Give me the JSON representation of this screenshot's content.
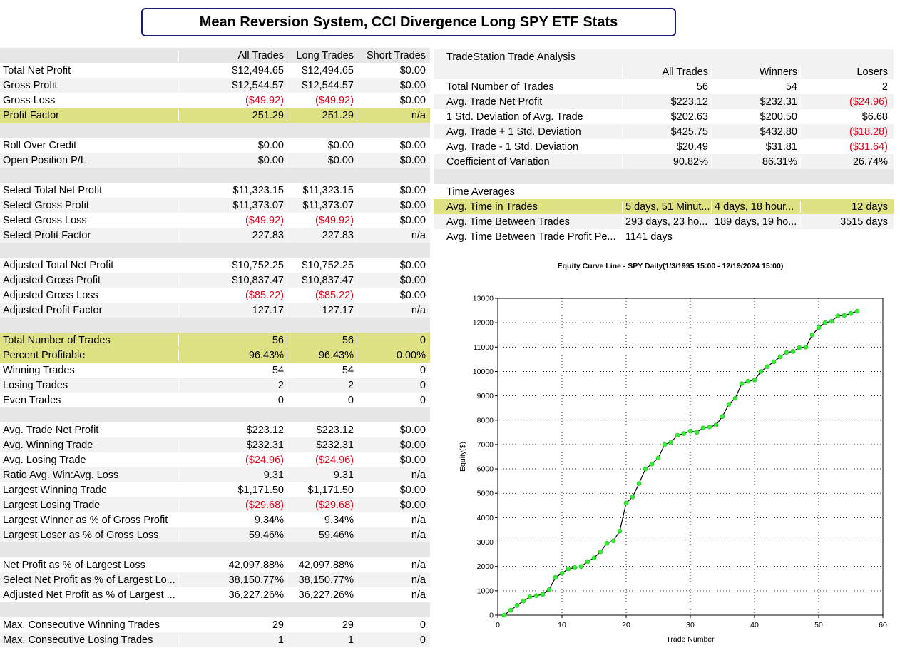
{
  "title": "Mean Reversion System, CCI Divergence Long SPY ETF Stats",
  "stats": {
    "headers": [
      "",
      "All Trades",
      "Long Trades",
      "Short Trades"
    ],
    "rows": [
      {
        "label": "Total Net Profit",
        "all": "$12,494.65",
        "long": "$12,494.65",
        "short": "$0.00"
      },
      {
        "label": "Gross Profit",
        "all": "$12,544.57",
        "long": "$12,544.57",
        "short": "$0.00"
      },
      {
        "label": "Gross Loss",
        "all": "($49.92)",
        "long": "($49.92)",
        "short": "$0.00",
        "neg": true
      },
      {
        "label": "Profit Factor",
        "all": "251.29",
        "long": "251.29",
        "short": "n/a",
        "highlight": true
      },
      {
        "blank": true
      },
      {
        "label": "Roll Over Credit",
        "all": "$0.00",
        "long": "$0.00",
        "short": "$0.00"
      },
      {
        "label": "Open Position P/L",
        "all": "$0.00",
        "long": "$0.00",
        "short": "$0.00"
      },
      {
        "blank": true
      },
      {
        "label": "Select Total Net Profit",
        "all": "$11,323.15",
        "long": "$11,323.15",
        "short": "$0.00"
      },
      {
        "label": "Select Gross Profit",
        "all": "$11,373.07",
        "long": "$11,373.07",
        "short": "$0.00"
      },
      {
        "label": "Select Gross Loss",
        "all": "($49.92)",
        "long": "($49.92)",
        "short": "$0.00",
        "neg": true
      },
      {
        "label": "Select Profit Factor",
        "all": "227.83",
        "long": "227.83",
        "short": "n/a"
      },
      {
        "blank": true
      },
      {
        "label": "Adjusted Total Net Profit",
        "all": "$10,752.25",
        "long": "$10,752.25",
        "short": "$0.00"
      },
      {
        "label": "Adjusted Gross Profit",
        "all": "$10,837.47",
        "long": "$10,837.47",
        "short": "$0.00"
      },
      {
        "label": "Adjusted Gross Loss",
        "all": "($85.22)",
        "long": "($85.22)",
        "short": "$0.00",
        "neg": true
      },
      {
        "label": "Adjusted Profit Factor",
        "all": "127.17",
        "long": "127.17",
        "short": "n/a"
      },
      {
        "blank": true
      },
      {
        "label": "Total Number of Trades",
        "all": "56",
        "long": "56",
        "short": "0",
        "highlight": true
      },
      {
        "label": "Percent Profitable",
        "all": "96.43%",
        "long": "96.43%",
        "short": "0.00%",
        "highlight": true
      },
      {
        "label": "Winning Trades",
        "all": "54",
        "long": "54",
        "short": "0"
      },
      {
        "label": "Losing Trades",
        "all": "2",
        "long": "2",
        "short": "0"
      },
      {
        "label": "Even Trades",
        "all": "0",
        "long": "0",
        "short": "0"
      },
      {
        "blank": true
      },
      {
        "label": "Avg. Trade Net Profit",
        "all": "$223.12",
        "long": "$223.12",
        "short": "$0.00"
      },
      {
        "label": "Avg. Winning Trade",
        "all": "$232.31",
        "long": "$232.31",
        "short": "$0.00"
      },
      {
        "label": "Avg. Losing Trade",
        "all": "($24.96)",
        "long": "($24.96)",
        "short": "$0.00",
        "neg": true
      },
      {
        "label": "Ratio Avg. Win:Avg. Loss",
        "all": "9.31",
        "long": "9.31",
        "short": "n/a"
      },
      {
        "label": "Largest Winning Trade",
        "all": "$1,171.50",
        "long": "$1,171.50",
        "short": "$0.00"
      },
      {
        "label": "Largest Losing Trade",
        "all": "($29.68)",
        "long": "($29.68)",
        "short": "$0.00",
        "neg": true
      },
      {
        "label": "Largest Winner as % of Gross Profit",
        "all": "9.34%",
        "long": "9.34%",
        "short": "n/a"
      },
      {
        "label": "Largest Loser as % of Gross Loss",
        "all": "59.46%",
        "long": "59.46%",
        "short": "n/a"
      },
      {
        "blank": true
      },
      {
        "label": "Net Profit as % of Largest Loss",
        "all": "42,097.88%",
        "long": "42,097.88%",
        "short": "n/a"
      },
      {
        "label": "Select Net Profit as % of Largest Lo...",
        "all": "38,150.77%",
        "long": "38,150.77%",
        "short": "n/a"
      },
      {
        "label": "Adjusted Net Profit as % of Largest ...",
        "all": "36,227.26%",
        "long": "36,227.26%",
        "short": "n/a"
      },
      {
        "blank": true
      },
      {
        "label": "Max. Consecutive Winning Trades",
        "all": "29",
        "long": "29",
        "short": "0"
      },
      {
        "label": "Max. Consecutive Losing Trades",
        "all": "1",
        "long": "1",
        "short": "0"
      }
    ]
  },
  "analysis": {
    "title": "TradeStation Trade Analysis",
    "headers": [
      "",
      "All Trades",
      "Winners",
      "Losers"
    ],
    "rows": [
      {
        "label": "Total Number of Trades",
        "all": "56",
        "win": "54",
        "lose": "2"
      },
      {
        "label": "Avg. Trade Net Profit",
        "all": "$223.12",
        "win": "$232.31",
        "lose": "($24.96)",
        "neg": true
      },
      {
        "label": "1 Std. Deviation of Avg. Trade",
        "all": "$202.63",
        "win": "$200.50",
        "lose": "$6.68"
      },
      {
        "label": "Avg. Trade + 1 Std. Deviation",
        "all": "$425.75",
        "win": "$432.80",
        "lose": "($18.28)",
        "neg": true
      },
      {
        "label": "Avg. Trade - 1 Std. Deviation",
        "all": "$20.49",
        "win": "$31.81",
        "lose": "($31.64)",
        "neg": true
      },
      {
        "label": "Coefficient of Variation",
        "all": "90.82%",
        "win": "86.31%",
        "lose": "26.74%"
      }
    ],
    "time_title": "Time Averages",
    "time_rows": [
      {
        "label": "Avg. Time in Trades",
        "all": "5 days, 51 Minut...",
        "win": "4 days, 18 hour...",
        "lose": "12 days",
        "highlight": true
      },
      {
        "label": "Avg. Time Between Trades",
        "all": "293 days, 23 ho...",
        "win": "189 days, 19 ho...",
        "lose": "3515 days"
      },
      {
        "label": "Avg. Time Between Trade Profit Pe...",
        "all": "1141 days",
        "win": "",
        "lose": ""
      }
    ]
  },
  "chart_data": {
    "type": "line",
    "title": "Equity Curve Line - SPY Daily(1/3/1995 15:00 - 12/19/2024 15:00)",
    "xlabel": "Trade Number",
    "ylabel": "Equity($)",
    "xlim": [
      0,
      60
    ],
    "ylim": [
      0,
      13000
    ],
    "xticks": [
      0,
      10,
      20,
      30,
      40,
      50,
      60
    ],
    "yticks": [
      0,
      1000,
      2000,
      3000,
      4000,
      5000,
      6000,
      7000,
      8000,
      9000,
      10000,
      11000,
      12000,
      13000
    ],
    "grid": true,
    "line_color": "#000000",
    "marker_color": "#33ee33",
    "x": [
      1,
      2,
      3,
      4,
      5,
      6,
      7,
      8,
      9,
      10,
      11,
      12,
      13,
      14,
      15,
      16,
      17,
      18,
      19,
      20,
      21,
      22,
      23,
      24,
      25,
      26,
      27,
      28,
      29,
      30,
      31,
      32,
      33,
      34,
      35,
      36,
      37,
      38,
      39,
      40,
      41,
      42,
      43,
      44,
      45,
      46,
      47,
      48,
      49,
      50,
      51,
      52,
      53,
      54,
      55,
      56
    ],
    "y": [
      0,
      200,
      400,
      580,
      750,
      800,
      850,
      1050,
      1550,
      1720,
      1900,
      1950,
      2000,
      2200,
      2350,
      2600,
      2950,
      3050,
      3450,
      4600,
      4850,
      5400,
      6000,
      6200,
      6450,
      7000,
      7100,
      7380,
      7450,
      7550,
      7500,
      7680,
      7720,
      7800,
      8150,
      8650,
      8900,
      9500,
      9600,
      9650,
      10000,
      10200,
      10400,
      10600,
      10780,
      10820,
      10980,
      11000,
      11500,
      11800,
      12000,
      12060,
      12280,
      12300,
      12380,
      12470
    ]
  }
}
